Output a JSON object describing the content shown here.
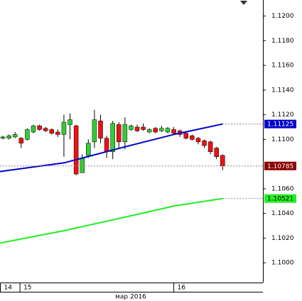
{
  "chart_data": {
    "type": "candlestick",
    "xlim": [
      -0.47,
      42.6
    ],
    "ylim": [
      1.0984,
      1.1213
    ],
    "yticks": [
      {
        "value": 1.12,
        "label": "1.1200"
      },
      {
        "value": 1.118,
        "label": "1.1180"
      },
      {
        "value": 1.116,
        "label": "1.1160"
      },
      {
        "value": 1.114,
        "label": "1.1140"
      },
      {
        "value": 1.112,
        "label": "1.1120"
      },
      {
        "value": 1.11,
        "label": "1.1100"
      },
      {
        "value": 1.106,
        "label": "1.1060"
      },
      {
        "value": 1.104,
        "label": "1.1040"
      },
      {
        "value": 1.102,
        "label": "1.1020"
      },
      {
        "value": 1.1,
        "label": "1.1000"
      }
    ],
    "xticks": [
      {
        "value": -0.47,
        "label": "14"
      },
      {
        "value": 2.8,
        "label": "15"
      },
      {
        "value": 28,
        "label": "16"
      }
    ],
    "x_label": "мар 2016",
    "up_color": "#33cc33",
    "down_color": "#ee1111",
    "x": [
      0,
      1,
      2,
      3,
      4,
      5,
      6,
      7,
      8,
      9,
      10,
      11,
      12,
      13,
      14,
      15,
      16,
      17,
      18,
      19,
      20,
      21,
      22,
      23,
      24,
      25,
      26,
      27,
      28,
      29,
      30,
      31,
      32,
      33,
      34,
      35,
      36
    ],
    "open": [
      1.1101,
      1.1101,
      1.1102,
      1.1101,
      1.11,
      1.1106,
      1.1111,
      1.1109,
      1.1108,
      1.1106,
      1.1104,
      1.1112,
      1.1111,
      1.1073,
      1.1087,
      1.1098,
      1.1115,
      1.1101,
      1.109,
      1.1112,
      1.1098,
      1.1108,
      1.111,
      1.111,
      1.1106,
      1.1109,
      1.1107,
      1.1106,
      1.1108,
      1.1107,
      1.1105,
      1.1103,
      1.1101,
      1.1099,
      1.1098,
      1.1093,
      1.1087
    ],
    "high": [
      1.1103,
      1.1104,
      1.1106,
      1.1102,
      1.1109,
      1.1112,
      1.1112,
      1.111,
      1.1109,
      1.1108,
      1.112,
      1.1121,
      1.1112,
      1.1088,
      1.11,
      1.1124,
      1.112,
      1.1103,
      1.1115,
      1.1114,
      1.1118,
      1.1112,
      1.1112,
      1.1113,
      1.1109,
      1.111,
      1.1111,
      1.111,
      1.111,
      1.1108,
      1.1106,
      1.1104,
      1.1102,
      1.11,
      1.1099,
      1.1094,
      1.1088
    ],
    "low": [
      1.11,
      1.11,
      1.1101,
      1.1093,
      1.1099,
      1.1105,
      1.1107,
      1.1106,
      1.1104,
      1.1102,
      1.1086,
      1.11,
      1.1071,
      1.1073,
      1.1085,
      1.1093,
      1.1097,
      1.1085,
      1.1084,
      1.1093,
      1.1092,
      1.1107,
      1.1106,
      1.1107,
      1.1105,
      1.1105,
      1.1106,
      1.1105,
      1.1104,
      1.1102,
      1.11,
      1.1099,
      1.1096,
      1.1093,
      1.1088,
      1.1084,
      1.1075
    ],
    "close": [
      1.1102,
      1.1103,
      1.1104,
      1.1097,
      1.1108,
      1.1111,
      1.1108,
      1.1107,
      1.1105,
      1.1104,
      1.1114,
      1.1116,
      1.1072,
      1.1085,
      1.1097,
      1.1116,
      1.1101,
      1.109,
      1.1113,
      1.1098,
      1.1112,
      1.1111,
      1.1107,
      1.1108,
      1.1108,
      1.1106,
      1.1109,
      1.1109,
      1.1105,
      1.1104,
      1.1101,
      1.11,
      1.1098,
      1.1095,
      1.109,
      1.1086,
      1.10785
    ],
    "lines": [
      {
        "color": "#0000cc",
        "x": [
          -0.47,
          10,
          20,
          28,
          36
        ],
        "values": [
          1.1074,
          1.1081,
          1.1094,
          1.1104,
          1.11125
        ]
      },
      {
        "color": "#22ee22",
        "x": [
          -0.47,
          10,
          20,
          28,
          36
        ],
        "values": [
          1.1016,
          1.1026,
          1.1037,
          1.1046,
          1.10521
        ]
      }
    ],
    "price_labels": [
      {
        "value": 1.11125,
        "label": "1.11125",
        "color": "#0000cc"
      },
      {
        "value": 1.10785,
        "label": "1.10785",
        "color": "#8b0000"
      },
      {
        "value": 1.10521,
        "label": "1.10521",
        "color": "#22ee22"
      }
    ]
  }
}
